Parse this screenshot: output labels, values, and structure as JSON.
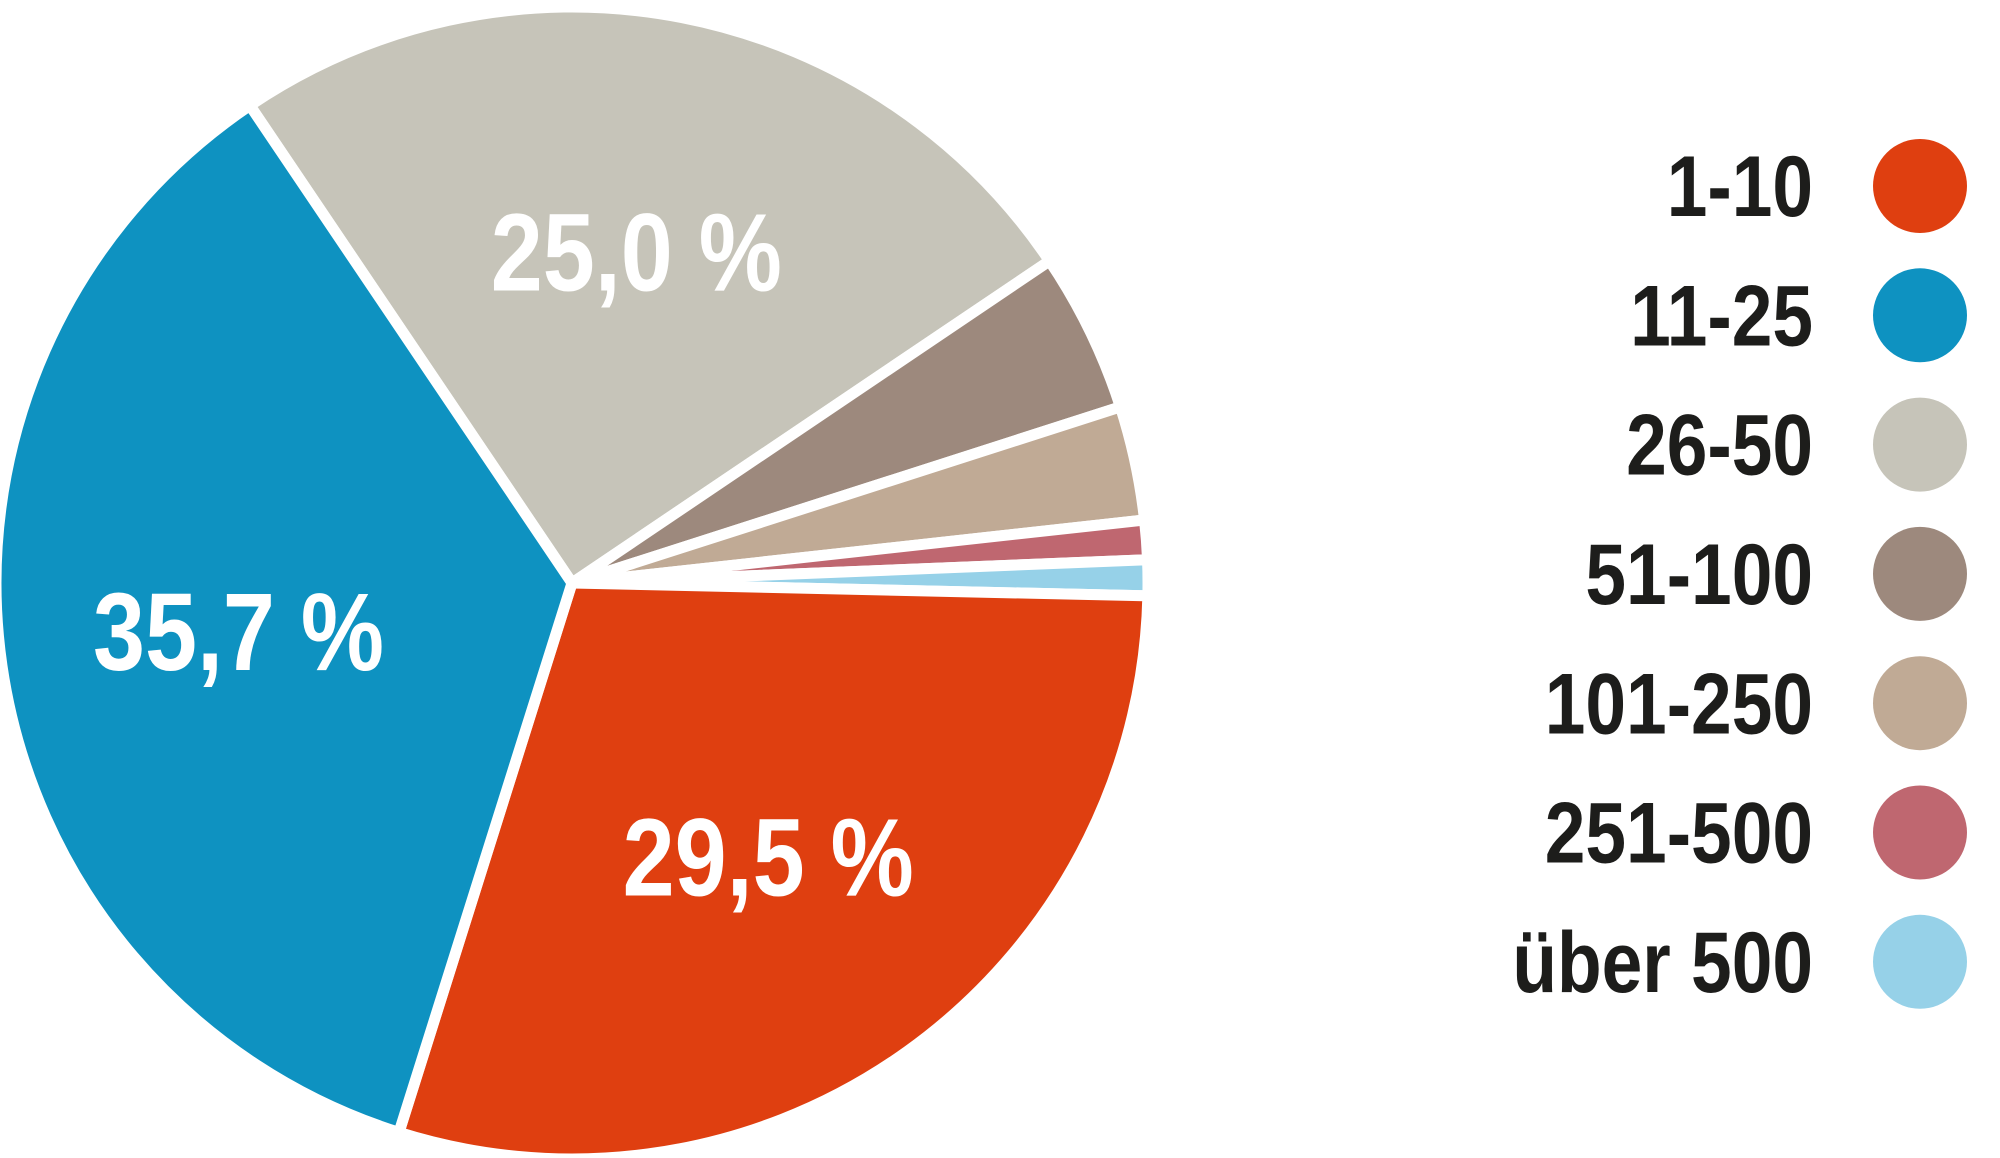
{
  "chart_data": {
    "type": "pie",
    "title": "",
    "legend_position": "right",
    "start_angle_deg": 124,
    "clockwise": true,
    "grid": false,
    "slice_label_color": "#ffffff",
    "legend_text_color": "#1d1d1b",
    "gap_color": "#ffffff",
    "draw_order": [
      "26-50",
      "51-100",
      "101-250",
      "251-500",
      "über 500",
      "1-10",
      "11-25"
    ],
    "series": [
      {
        "label": "1-10",
        "value": 29.5,
        "display_label": "29,5 %",
        "color": "#df3f10",
        "estimated": false
      },
      {
        "label": "11-25",
        "value": 35.7,
        "display_label": "35,7 %",
        "color": "#0e92c1",
        "estimated": false
      },
      {
        "label": "26-50",
        "value": 25.0,
        "display_label": "25,0 %",
        "color": "#c6c4b9",
        "estimated": false
      },
      {
        "label": "51-100",
        "value": 4.5,
        "display_label": "",
        "color": "#9d897d",
        "estimated": true
      },
      {
        "label": "101-250",
        "value": 3.2,
        "display_label": "",
        "color": "#c0aa95",
        "estimated": true
      },
      {
        "label": "251-500",
        "value": 1.1,
        "display_label": "",
        "color": "#bf6770",
        "estimated": true
      },
      {
        "label": "über 500",
        "value": 1.0,
        "display_label": "",
        "color": "#96d1e8",
        "estimated": true
      }
    ]
  },
  "legend": {
    "items": [
      "1-10",
      "11-25",
      "26-50",
      "51-100",
      "101-250",
      "251-500",
      "über 500"
    ]
  }
}
